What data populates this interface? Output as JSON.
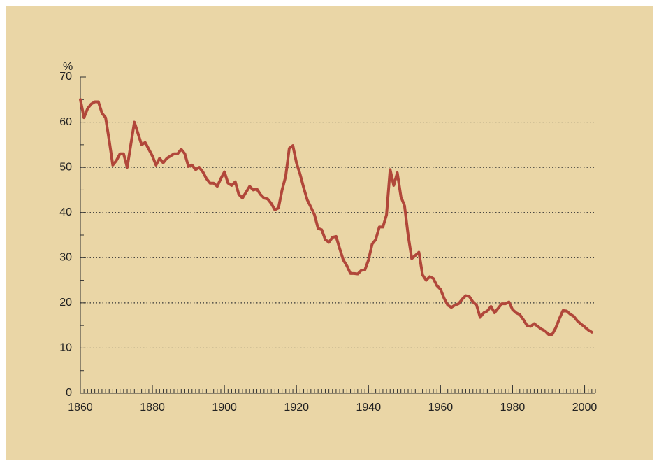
{
  "chart_data": {
    "type": "line",
    "y_unit_label": "%",
    "x": [
      1860,
      1861,
      1862,
      1863,
      1864,
      1865,
      1866,
      1867,
      1868,
      1869,
      1870,
      1871,
      1872,
      1873,
      1874,
      1875,
      1876,
      1877,
      1878,
      1879,
      1880,
      1881,
      1882,
      1883,
      1884,
      1885,
      1886,
      1887,
      1888,
      1889,
      1890,
      1891,
      1892,
      1893,
      1894,
      1895,
      1896,
      1897,
      1898,
      1899,
      1900,
      1901,
      1902,
      1903,
      1904,
      1905,
      1906,
      1907,
      1908,
      1909,
      1910,
      1911,
      1912,
      1913,
      1914,
      1915,
      1916,
      1917,
      1918,
      1919,
      1920,
      1921,
      1922,
      1923,
      1924,
      1925,
      1926,
      1927,
      1928,
      1929,
      1930,
      1931,
      1932,
      1933,
      1934,
      1935,
      1936,
      1937,
      1938,
      1939,
      1940,
      1941,
      1942,
      1943,
      1944,
      1945,
      1946,
      1947,
      1948,
      1949,
      1950,
      1951,
      1952,
      1953,
      1954,
      1955,
      1956,
      1957,
      1958,
      1959,
      1960,
      1961,
      1962,
      1963,
      1964,
      1965,
      1966,
      1967,
      1968,
      1969,
      1970,
      1971,
      1972,
      1973,
      1974,
      1975,
      1976,
      1977,
      1978,
      1979,
      1980,
      1981,
      1982,
      1983,
      1984,
      1985,
      1986,
      1987,
      1988,
      1989,
      1990,
      1991,
      1992,
      1993,
      1994,
      1995,
      1996,
      1997,
      1998,
      1999,
      2000,
      2001,
      2002
    ],
    "series": [
      {
        "color": "#b1473a",
        "values": [
          65,
          61,
          63,
          64,
          64.5,
          64.5,
          62,
          61,
          56,
          50.5,
          51.5,
          53,
          53,
          50,
          55,
          60,
          57.5,
          55,
          55.5,
          54,
          52.5,
          50.5,
          52,
          51,
          52,
          52.5,
          53,
          53,
          54,
          53,
          50.2,
          50.5,
          49.5,
          50,
          49,
          47.5,
          46.5,
          46.5,
          45.8,
          47.5,
          49,
          46.5,
          46,
          46.8,
          44,
          43.2,
          44.5,
          45.8,
          45,
          45.2,
          44,
          43.2,
          43,
          42,
          40.6,
          41,
          45,
          48,
          54.2,
          54.8,
          51,
          48.5,
          45.5,
          42.8,
          41.2,
          39.5,
          36.5,
          36.2,
          34,
          33.4,
          34.5,
          34.7,
          32,
          29.5,
          28.2,
          26.5,
          26.5,
          26.4,
          27.2,
          27.3,
          29.5,
          33,
          34,
          36.8,
          36.8,
          39.5,
          49.5,
          46,
          48.8,
          43.5,
          41.5,
          35,
          29.8,
          30.5,
          31.2,
          26.2,
          25,
          25.8,
          25.4,
          23.8,
          23,
          21,
          19.5,
          19,
          19.5,
          19.8,
          20.8,
          21.6,
          21.4,
          20.2,
          19.5,
          16.8,
          17.8,
          18.2,
          19.2,
          17.8,
          18.8,
          19.8,
          19.8,
          20.2,
          18.5,
          17.8,
          17.4,
          16.3,
          15,
          14.8,
          15.4,
          14.8,
          14.2,
          13.8,
          13,
          13,
          14.5,
          16.5,
          18.3,
          18.2,
          17.5,
          17,
          16,
          15.3,
          14.7,
          14,
          13.5
        ]
      }
    ],
    "xlim": [
      1860,
      2003
    ],
    "xticks": [
      1860,
      1880,
      1900,
      1920,
      1940,
      1960,
      1980,
      2000
    ],
    "ylim": [
      0,
      70
    ],
    "yticks": [
      0,
      10,
      20,
      30,
      40,
      50,
      60,
      70
    ],
    "grid": true,
    "background": "#ead6a6"
  }
}
